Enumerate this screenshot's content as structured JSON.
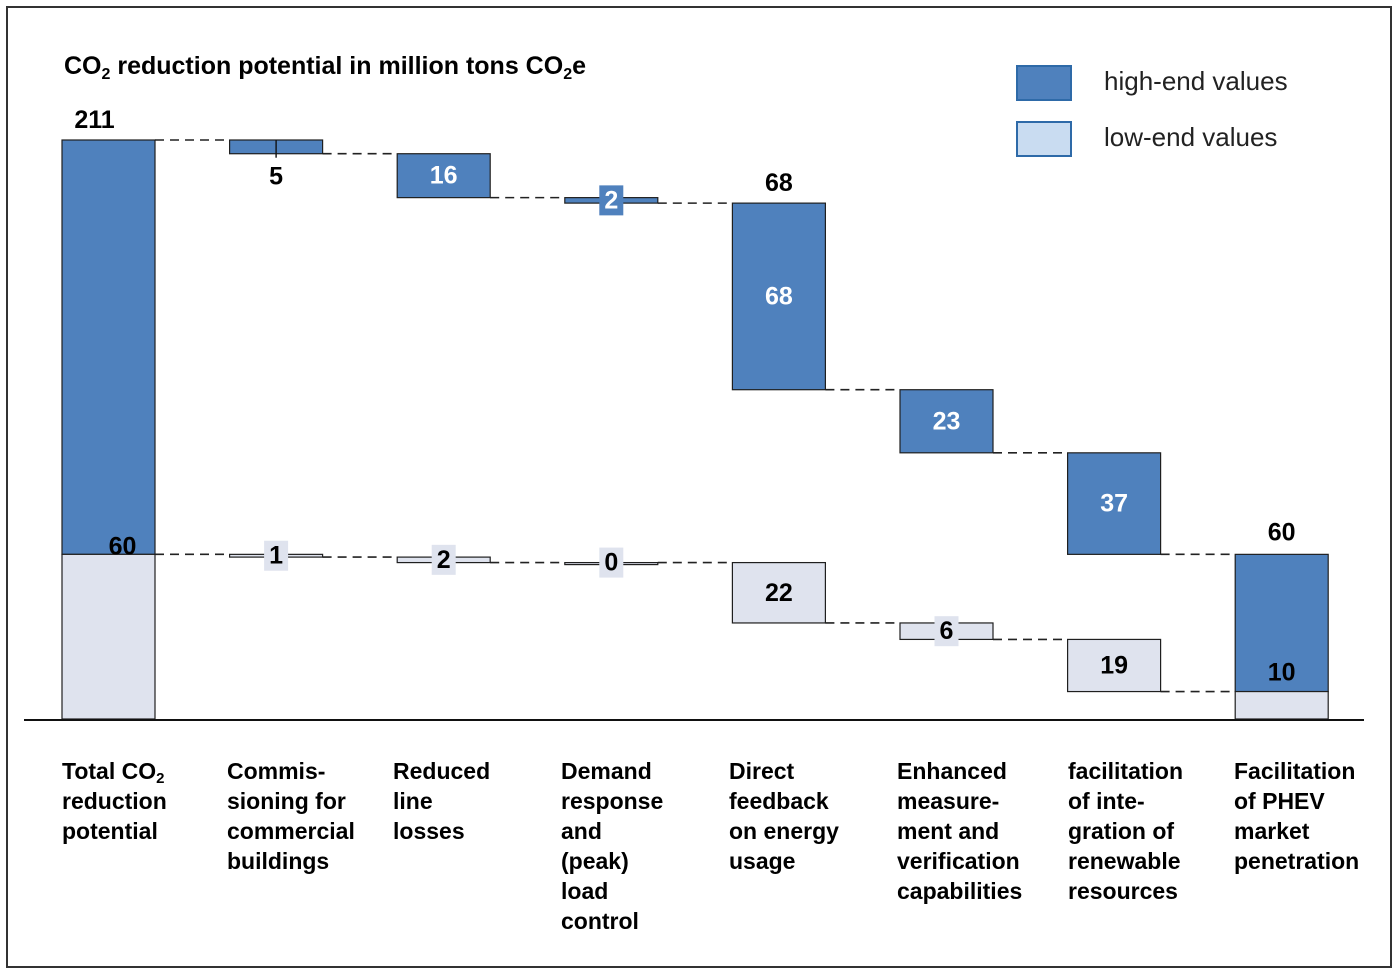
{
  "colors": {
    "high": "#4f81bd",
    "low": "#dfe3ee",
    "line": "#222222"
  },
  "title": {
    "main": "CO",
    "sub": "2",
    "mid": " reduction potential in million tons CO",
    "sub2": "2",
    "end": "e"
  },
  "legend": {
    "high_label": "high-end values",
    "low_label": "low-end values"
  },
  "categories": [
    {
      "main": "Total CO",
      "sub": "2",
      "rest": "\nreduction\npotential"
    },
    {
      "main": "Commis-\nsioning for\ncommercial\nbuildings",
      "sub": "",
      "rest": ""
    },
    {
      "main": "Reduced\nline\nlosses",
      "sub": "",
      "rest": ""
    },
    {
      "main": "Demand\nresponse\nand\n(peak)\nload\ncontrol",
      "sub": "",
      "rest": ""
    },
    {
      "main": "Direct\nfeedback\non energy\nusage",
      "sub": "",
      "rest": ""
    },
    {
      "main": "Enhanced\nmeasure-\nment and\nverification\ncapabilities",
      "sub": "",
      "rest": ""
    },
    {
      "main": "facilitation\nof inte-\ngration of\nrenewable\nresources",
      "sub": "",
      "rest": ""
    },
    {
      "main": "Facilitation\nof PHEV\nmarket\npenetration",
      "sub": "",
      "rest": ""
    }
  ],
  "chart_data": {
    "type": "waterfall",
    "title": "CO2 reduction potential in million tons CO2e",
    "ylim": [
      0,
      211
    ],
    "series": [
      {
        "name": "high-end values",
        "values": [
          211,
          5,
          16,
          2,
          68,
          23,
          37,
          60
        ]
      },
      {
        "name": "low-end values",
        "values": [
          60,
          1,
          2,
          0,
          22,
          6,
          19,
          10
        ]
      }
    ],
    "steps": [
      {
        "high_top": 211,
        "high_bottom": 60,
        "low_top": 60,
        "low_bottom": 0
      },
      {
        "high_top": 211,
        "high_bottom": 206,
        "low_top": 60,
        "low_bottom": 59
      },
      {
        "high_top": 206,
        "high_bottom": 190,
        "low_top": 59,
        "low_bottom": 57
      },
      {
        "high_top": 190,
        "high_bottom": 188,
        "low_top": 57,
        "low_bottom": 57
      },
      {
        "high_top": 188,
        "high_bottom": 120,
        "low_top": 57,
        "low_bottom": 35
      },
      {
        "high_top": 120,
        "high_bottom": 97,
        "low_top": 35,
        "low_bottom": 29
      },
      {
        "high_top": 97,
        "high_bottom": 60,
        "low_top": 29,
        "low_bottom": 10
      },
      {
        "high_top": 60,
        "high_bottom": 10,
        "low_top": 10,
        "low_bottom": 0
      }
    ],
    "high_labels": [
      "211",
      "5",
      "16",
      "2",
      "68",
      "23",
      "37",
      "60"
    ],
    "low_labels": [
      "60",
      "1",
      "2",
      "0",
      "22",
      "6",
      "19",
      "10"
    ],
    "top_totals": [
      {
        "index": 4,
        "label": "68"
      }
    ]
  }
}
